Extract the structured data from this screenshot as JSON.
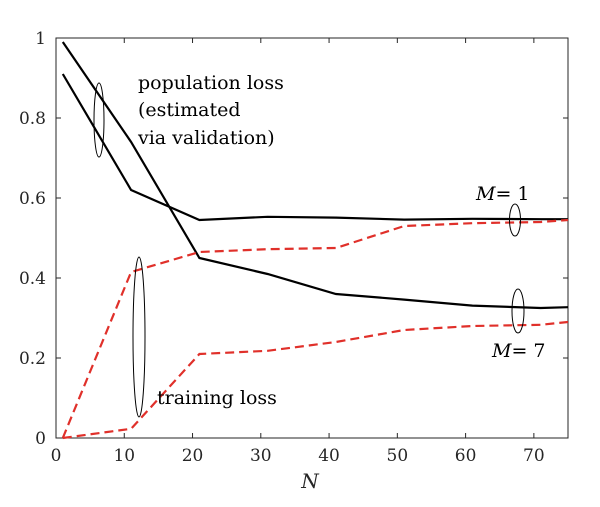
{
  "chart_data": {
    "type": "line",
    "title": "",
    "xlabel": "N",
    "ylabel": "",
    "xlim": [
      0,
      75
    ],
    "ylim": [
      0,
      1
    ],
    "xticks": [
      0,
      10,
      20,
      30,
      40,
      50,
      60,
      70
    ],
    "yticks": [
      0,
      0.2,
      0.4,
      0.6,
      0.8,
      1
    ],
    "xtick_labels": [
      "0",
      "10",
      "20",
      "30",
      "40",
      "50",
      "60",
      "70"
    ],
    "ytick_labels": [
      "0",
      "0.2",
      "0.4",
      "0.6",
      "0.8",
      "1"
    ],
    "series": [
      {
        "name": "population loss, M = 1",
        "style": "solid",
        "color": "#000000",
        "x": [
          1,
          11,
          21,
          31,
          41,
          51,
          61,
          71,
          75
        ],
        "y": [
          0.91,
          0.62,
          0.545,
          0.553,
          0.551,
          0.546,
          0.548,
          0.547,
          0.547
        ]
      },
      {
        "name": "population loss, M = 7",
        "style": "solid",
        "color": "#000000",
        "x": [
          1,
          11,
          21,
          31,
          41,
          51,
          61,
          71,
          75
        ],
        "y": [
          0.99,
          0.74,
          0.45,
          0.41,
          0.36,
          0.346,
          0.331,
          0.325,
          0.327
        ]
      },
      {
        "name": "training loss, M = 1",
        "style": "dashed",
        "color": "#e0302a",
        "x": [
          1,
          11,
          21,
          31,
          41,
          51,
          61,
          71,
          75
        ],
        "y": [
          0.0,
          0.415,
          0.465,
          0.472,
          0.475,
          0.53,
          0.537,
          0.54,
          0.545
        ]
      },
      {
        "name": "training loss, M = 7",
        "style": "dashed",
        "color": "#e0302a",
        "x": [
          1,
          11,
          21,
          31,
          41,
          51,
          61,
          71,
          75
        ],
        "y": [
          0.0,
          0.023,
          0.21,
          0.218,
          0.24,
          0.27,
          0.28,
          0.283,
          0.29
        ]
      }
    ],
    "annotations": {
      "population_line1": "population loss",
      "population_line2": "(estimated",
      "population_line3": "via validation)",
      "training": "training loss",
      "m1_var": "M",
      "m1_rest": "= 1",
      "m7_var": "M",
      "m7_rest": "= 7"
    }
  }
}
